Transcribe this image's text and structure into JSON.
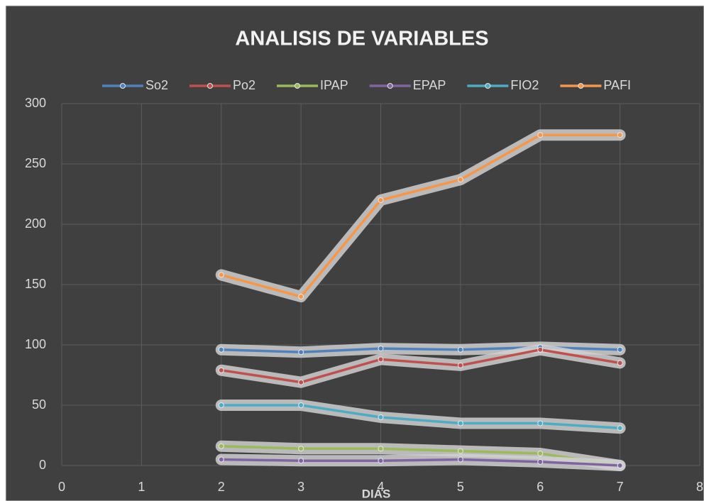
{
  "chart_data": {
    "type": "line",
    "title": "ANALISIS DE VARIABLES",
    "x_label": "DIAS",
    "x": [
      2,
      3,
      4,
      5,
      6,
      7
    ],
    "series": [
      {
        "name": "So2",
        "color": "#4f81bd",
        "values": [
          96,
          94,
          97,
          96,
          98,
          96
        ]
      },
      {
        "name": "Po2",
        "color": "#c0504d",
        "values": [
          79,
          69,
          88,
          83,
          96,
          85
        ]
      },
      {
        "name": "IPAP",
        "color": "#9bbb59",
        "values": [
          16,
          14,
          14,
          12,
          10,
          0
        ]
      },
      {
        "name": "EPAP",
        "color": "#8064a2",
        "values": [
          5,
          4,
          4,
          5,
          3,
          0
        ]
      },
      {
        "name": "FIO2",
        "color": "#4bacc6",
        "values": [
          50,
          50,
          40,
          35,
          35,
          31
        ]
      },
      {
        "name": "PAFI",
        "color": "#f79646",
        "values": [
          158,
          140,
          220,
          237,
          274,
          274
        ]
      }
    ],
    "xlim": [
      0,
      8
    ],
    "xticks": [
      0,
      1,
      2,
      3,
      4,
      5,
      6,
      7,
      8
    ],
    "ylim": [
      0,
      300
    ],
    "yticks": [
      0,
      50,
      100,
      150,
      200,
      250,
      300
    ],
    "grid": true,
    "legend": "top"
  }
}
